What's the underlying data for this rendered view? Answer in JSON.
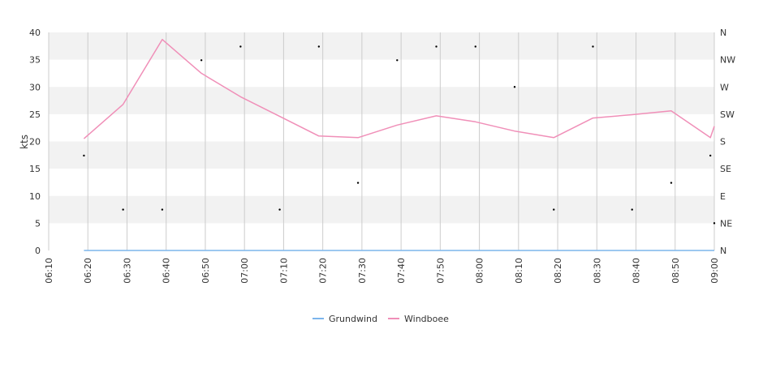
{
  "chart_data": {
    "type": "line",
    "ylabel": "kts",
    "ylim": [
      0,
      40
    ],
    "y_ticks": [
      "0",
      "5",
      "10",
      "15",
      "20",
      "25",
      "30",
      "35",
      "40"
    ],
    "y_tick_values": [
      0,
      5,
      10,
      15,
      20,
      25,
      30,
      35,
      40
    ],
    "right_ticks": [
      "N",
      "NE",
      "E",
      "SE",
      "S",
      "SW",
      "W",
      "NW",
      "N"
    ],
    "x_ticks": [
      "06:10",
      "06:20",
      "06:30",
      "06:40",
      "06:50",
      "07:00",
      "07:10",
      "07:20",
      "07:30",
      "07:40",
      "07:50",
      "08:00",
      "08:10",
      "08:20",
      "08:30",
      "08:40",
      "08:50",
      "09:00"
    ],
    "xlim": [
      "06:10",
      "09:00"
    ],
    "grid": true,
    "legend_position": "bottom",
    "series": [
      {
        "name": "Grundwind",
        "color": "#7cb5ec",
        "x": [
          "06:19",
          "09:00"
        ],
        "values": [
          0,
          0
        ]
      },
      {
        "name": "Windboee",
        "color": "#f08fb8",
        "x": [
          "06:19",
          "06:29",
          "06:39",
          "06:49",
          "06:59",
          "07:09",
          "07:19",
          "07:29",
          "07:39",
          "07:49",
          "07:59",
          "08:09",
          "08:19",
          "08:29",
          "08:39",
          "08:49",
          "08:59",
          "09:00"
        ],
        "values": [
          20.5,
          26.8,
          38.7,
          32.5,
          28.2,
          24.6,
          21.0,
          20.7,
          23.0,
          24.7,
          23.6,
          21.9,
          20.7,
          24.3,
          24.9,
          25.6,
          20.7,
          22.8
        ]
      }
    ],
    "direction_points": {
      "color": "#000000",
      "x": [
        "06:19",
        "06:29",
        "06:39",
        "06:49",
        "06:59",
        "07:09",
        "07:19",
        "07:29",
        "07:39",
        "07:49",
        "07:59",
        "08:09",
        "08:19",
        "08:29",
        "08:39",
        "08:49",
        "08:59",
        "09:00"
      ],
      "values": [
        17.4,
        7.5,
        7.5,
        34.9,
        37.4,
        7.5,
        37.4,
        12.4,
        34.9,
        37.4,
        37.4,
        30.0,
        7.5,
        37.4,
        7.5,
        12.4,
        17.4,
        5.0
      ]
    }
  }
}
